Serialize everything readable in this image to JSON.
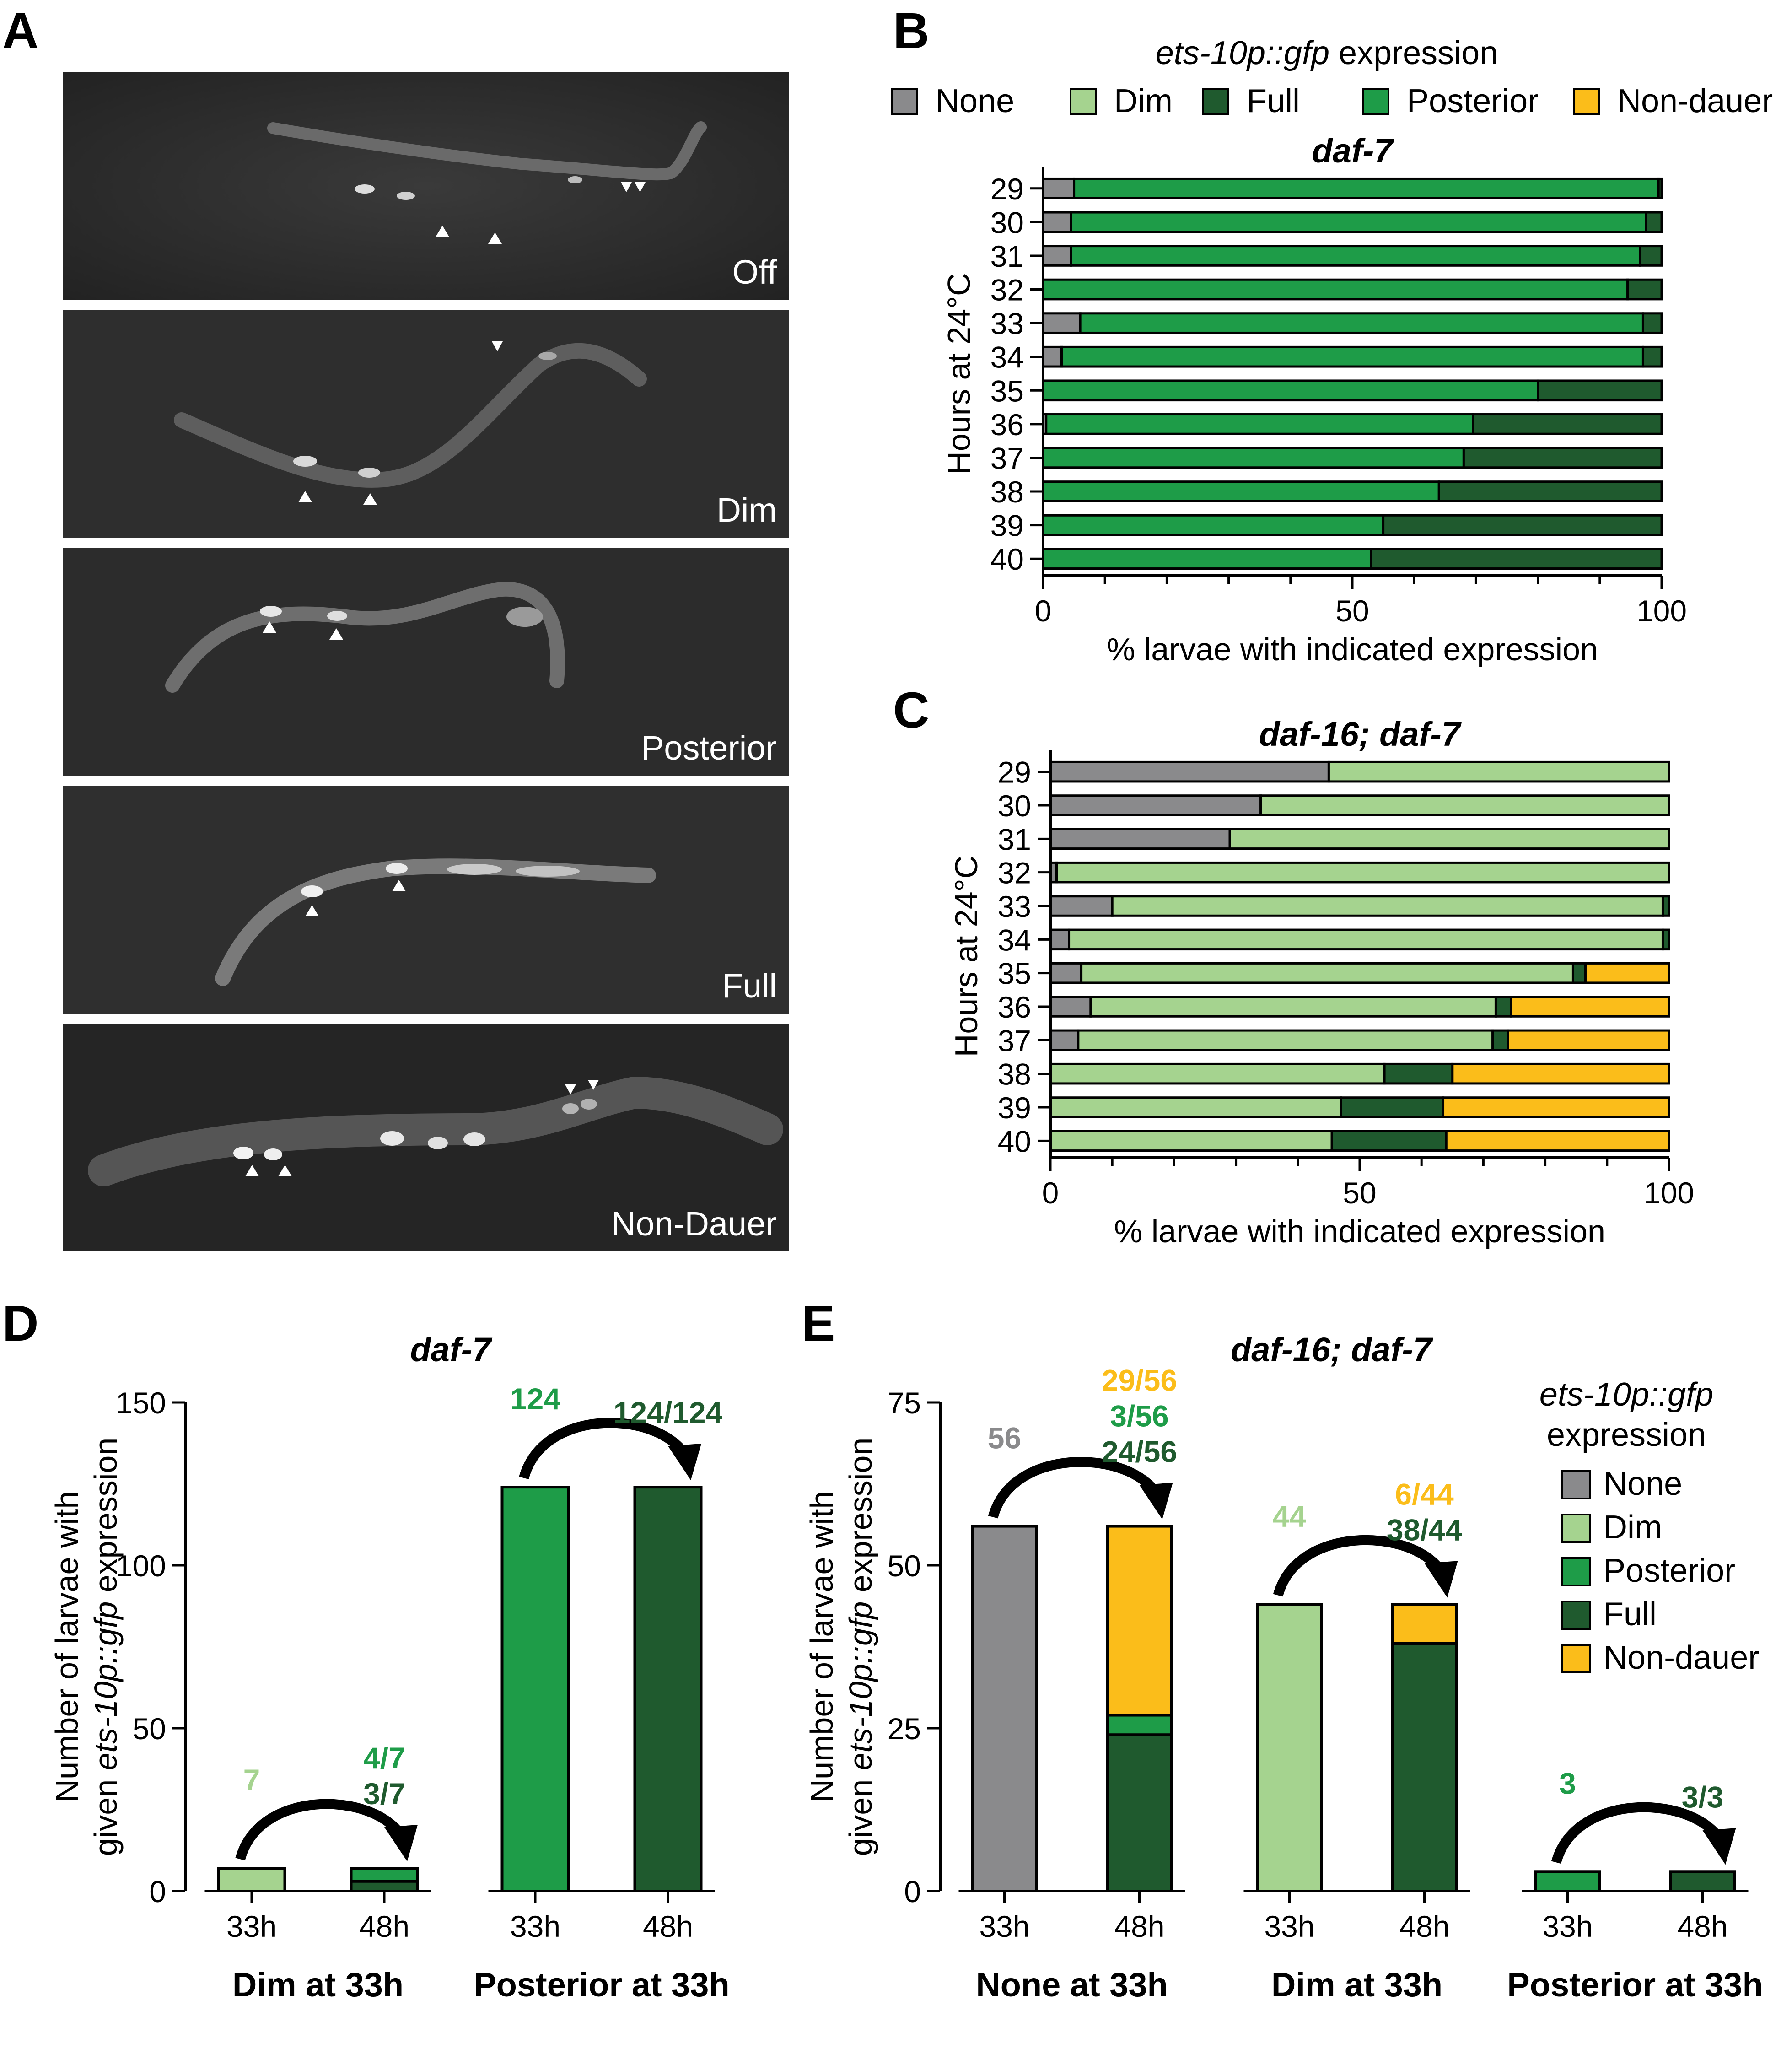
{
  "colors": {
    "none": "#8a8a8c",
    "dim": "#a5d38f",
    "posterior": "#1e9c48",
    "full": "#1f5a2e",
    "nondauer": "#fbbd1a",
    "image_bg": "#2b2b2b"
  },
  "panel_letters": [
    "A",
    "B",
    "C",
    "D",
    "E"
  ],
  "panel_a": {
    "images": [
      {
        "label": "Off"
      },
      {
        "label": "Dim"
      },
      {
        "label": "Posterior"
      },
      {
        "label": "Full"
      },
      {
        "label": "Non-Dauer"
      }
    ]
  },
  "legend_b": {
    "title_italic": "ets-10p::gfp",
    "title_rest": " expression",
    "items": [
      {
        "label": "None",
        "key": "none"
      },
      {
        "label": "Dim",
        "key": "dim"
      },
      {
        "label": "Full",
        "key": "full"
      },
      {
        "label": "Posterior",
        "key": "posterior"
      },
      {
        "label": "Non-dauer",
        "key": "nondauer"
      }
    ]
  },
  "legend_e": {
    "title_italic": "ets-10p::gfp",
    "title_rest": "expression",
    "items": [
      {
        "label": "None",
        "key": "none"
      },
      {
        "label": "Dim",
        "key": "dim"
      },
      {
        "label": "Posterior",
        "key": "posterior"
      },
      {
        "label": "Full",
        "key": "full"
      },
      {
        "label": "Non-dauer",
        "key": "nondauer"
      }
    ]
  },
  "chart_data": [
    {
      "panel": "B",
      "type": "bar",
      "orientation": "horizontal-stacked",
      "title": "daf-7",
      "ylabel": "Hours at 24°C",
      "xlabel": "% larvae with indicated expression",
      "xlim": [
        0,
        100
      ],
      "xticks": [
        "0",
        "50",
        "100"
      ],
      "categories": [
        "29",
        "30",
        "31",
        "32",
        "33",
        "34",
        "35",
        "36",
        "37",
        "38",
        "39",
        "40"
      ],
      "series": [
        {
          "name": "None",
          "key": "none",
          "values": [
            5,
            4.5,
            4.5,
            0,
            6,
            3,
            0,
            0.5,
            0,
            0,
            0,
            0
          ]
        },
        {
          "name": "Dim",
          "key": "dim",
          "values": [
            0,
            0,
            0,
            0,
            0,
            0,
            0,
            0,
            0,
            0,
            0,
            0
          ]
        },
        {
          "name": "Posterior",
          "key": "posterior",
          "values": [
            94.5,
            93,
            92,
            94.5,
            91,
            94,
            80,
            69,
            68,
            64,
            55,
            53
          ]
        },
        {
          "name": "Full",
          "key": "full",
          "values": [
            0.5,
            2.5,
            3.5,
            5.5,
            3,
            3,
            20,
            30.5,
            32,
            36,
            45,
            47
          ]
        },
        {
          "name": "Non-dauer",
          "key": "nondauer",
          "values": [
            0,
            0,
            0,
            0,
            0,
            0,
            0,
            0,
            0,
            0,
            0,
            0
          ]
        }
      ]
    },
    {
      "panel": "C",
      "type": "bar",
      "orientation": "horizontal-stacked",
      "title": "daf-16; daf-7",
      "ylabel": "Hours at 24°C",
      "xlabel": "% larvae with indicated expression",
      "xlim": [
        0,
        100
      ],
      "xticks": [
        "0",
        "50",
        "100"
      ],
      "categories": [
        "29",
        "30",
        "31",
        "32",
        "33",
        "34",
        "35",
        "36",
        "37",
        "38",
        "39",
        "40"
      ],
      "series": [
        {
          "name": "None",
          "key": "none",
          "values": [
            45,
            34,
            29,
            1,
            10,
            3,
            5,
            6.5,
            4.5,
            0,
            0,
            0
          ]
        },
        {
          "name": "Dim",
          "key": "dim",
          "values": [
            55,
            66,
            71,
            99,
            89,
            96,
            79.5,
            65.5,
            67,
            54,
            47,
            45.5
          ]
        },
        {
          "name": "Posterior",
          "key": "posterior",
          "values": [
            0,
            0,
            0,
            0,
            0,
            0,
            0,
            0,
            0,
            0,
            0,
            0
          ]
        },
        {
          "name": "Full",
          "key": "full",
          "values": [
            0,
            0,
            0,
            0,
            1,
            1,
            2,
            2.5,
            2.5,
            11,
            16.5,
            18.5
          ]
        },
        {
          "name": "Non-dauer",
          "key": "nondauer",
          "values": [
            0,
            0,
            0,
            0,
            0,
            0,
            13.5,
            25.5,
            26,
            35,
            36.5,
            36
          ]
        }
      ]
    },
    {
      "panel": "D",
      "type": "bar",
      "orientation": "vertical-stacked",
      "title": "daf-7",
      "ylabel_line1": "Number of larvae with",
      "ylabel_line2_pre": "given ",
      "ylabel_line2_italic": "ets-10p::gfp",
      "ylabel_line2_post": " expression",
      "ylim": [
        0,
        150
      ],
      "yticks": [
        "0",
        "50",
        "100",
        "150"
      ],
      "groups": [
        {
          "label": "Dim at 33h",
          "bars": [
            {
              "x": "33h",
              "segments": [
                {
                  "key": "dim",
                  "value": 7
                }
              ]
            },
            {
              "x": "48h",
              "segments": [
                {
                  "key": "full",
                  "value": 3
                },
                {
                  "key": "posterior",
                  "value": 4
                }
              ]
            }
          ],
          "annotations": [
            {
              "text": "7",
              "key": "dim"
            },
            {
              "text": "4/7",
              "key": "posterior"
            },
            {
              "text": "3/7",
              "key": "full"
            }
          ]
        },
        {
          "label": "Posterior at 33h",
          "bars": [
            {
              "x": "33h",
              "segments": [
                {
                  "key": "posterior",
                  "value": 124
                }
              ]
            },
            {
              "x": "48h",
              "segments": [
                {
                  "key": "full",
                  "value": 124
                }
              ]
            }
          ],
          "annotations": [
            {
              "text": "124",
              "key": "posterior"
            },
            {
              "text": "124/124",
              "key": "full"
            }
          ]
        }
      ]
    },
    {
      "panel": "E",
      "type": "bar",
      "orientation": "vertical-stacked",
      "title": "daf-16; daf-7",
      "ylabel_line1": "Number of larvae with",
      "ylabel_line2_pre": "given ",
      "ylabel_line2_italic": "ets-10p::gfp",
      "ylabel_line2_post": " expression",
      "ylim": [
        0,
        75
      ],
      "yticks": [
        "0",
        "25",
        "50",
        "75"
      ],
      "groups": [
        {
          "label": "None at 33h",
          "bars": [
            {
              "x": "33h",
              "segments": [
                {
                  "key": "none",
                  "value": 56
                }
              ]
            },
            {
              "x": "48h",
              "segments": [
                {
                  "key": "full",
                  "value": 24
                },
                {
                  "key": "posterior",
                  "value": 3
                },
                {
                  "key": "nondauer",
                  "value": 29
                }
              ]
            }
          ],
          "annotations": [
            {
              "text": "56",
              "key": "none"
            },
            {
              "text": "29/56",
              "key": "nondauer"
            },
            {
              "text": "3/56",
              "key": "posterior"
            },
            {
              "text": "24/56",
              "key": "full"
            }
          ]
        },
        {
          "label": "Dim at 33h",
          "bars": [
            {
              "x": "33h",
              "segments": [
                {
                  "key": "dim",
                  "value": 44
                }
              ]
            },
            {
              "x": "48h",
              "segments": [
                {
                  "key": "full",
                  "value": 38
                },
                {
                  "key": "nondauer",
                  "value": 6
                }
              ]
            }
          ],
          "annotations": [
            {
              "text": "44",
              "key": "dim"
            },
            {
              "text": "6/44",
              "key": "nondauer"
            },
            {
              "text": "38/44",
              "key": "full"
            }
          ]
        },
        {
          "label": "Posterior at 33h",
          "bars": [
            {
              "x": "33h",
              "segments": [
                {
                  "key": "posterior",
                  "value": 3
                }
              ]
            },
            {
              "x": "48h",
              "segments": [
                {
                  "key": "full",
                  "value": 3
                }
              ]
            }
          ],
          "annotations": [
            {
              "text": "3",
              "key": "posterior"
            },
            {
              "text": "3/3",
              "key": "full"
            }
          ]
        }
      ]
    }
  ]
}
